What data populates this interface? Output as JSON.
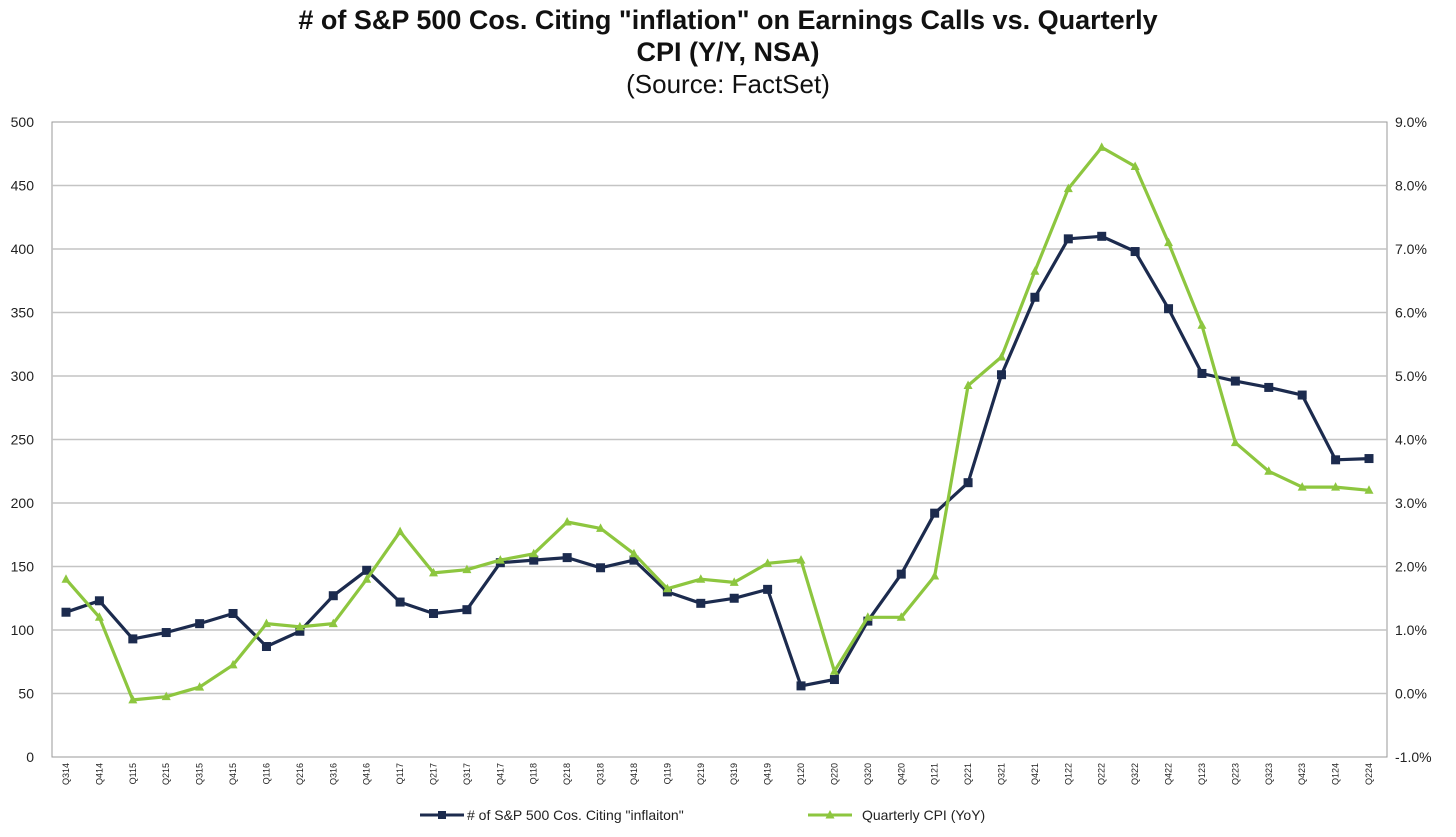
{
  "chart_data": {
    "type": "line",
    "title_line1": "# of S&P 500 Cos. Citing \"inflation\" on Earnings Calls vs. Quarterly",
    "title_line2": "CPI (Y/Y, NSA)",
    "subtitle": "(Source: FactSet)",
    "x": [
      "Q314",
      "Q414",
      "Q115",
      "Q215",
      "Q315",
      "Q415",
      "Q116",
      "Q216",
      "Q316",
      "Q416",
      "Q117",
      "Q217",
      "Q317",
      "Q417",
      "Q118",
      "Q218",
      "Q318",
      "Q418",
      "Q119",
      "Q219",
      "Q319",
      "Q419",
      "Q120",
      "Q220",
      "Q320",
      "Q420",
      "Q121",
      "Q221",
      "Q321",
      "Q421",
      "Q122",
      "Q222",
      "Q322",
      "Q422",
      "Q123",
      "Q223",
      "Q323",
      "Q423",
      "Q124",
      "Q224"
    ],
    "y_left": {
      "ylim": [
        0,
        500
      ],
      "ticks": [
        "0",
        "50",
        "100",
        "150",
        "200",
        "250",
        "300",
        "350",
        "400",
        "450",
        "500"
      ]
    },
    "y_right": {
      "ylim": [
        -1.0,
        9.0
      ],
      "ticks": [
        "-1.0%",
        "0.0%",
        "1.0%",
        "2.0%",
        "3.0%",
        "4.0%",
        "5.0%",
        "6.0%",
        "7.0%",
        "8.0%",
        "9.0%"
      ]
    },
    "grid": true,
    "legend_position": "bottom",
    "series": [
      {
        "name": "# of S&P 500 Cos. Citing \"inflaiton\"",
        "axis": "left",
        "color": "#1c2b4e",
        "marker": "square",
        "values": [
          114,
          123,
          93,
          98,
          105,
          113,
          87,
          99,
          127,
          147,
          122,
          113,
          116,
          153,
          155,
          157,
          149,
          155,
          130,
          121,
          125,
          132,
          56,
          61,
          107,
          144,
          192,
          216,
          301,
          362,
          408,
          410,
          398,
          353,
          302,
          296,
          291,
          285,
          234,
          235
        ]
      },
      {
        "name": "Quarterly CPI (YoY)",
        "axis": "right",
        "color": "#8dc63f",
        "marker": "triangle",
        "values": [
          1.8,
          1.2,
          -0.1,
          -0.05,
          0.1,
          0.45,
          1.1,
          1.05,
          1.1,
          1.8,
          2.55,
          1.9,
          1.95,
          2.1,
          2.2,
          2.7,
          2.6,
          2.2,
          1.65,
          1.8,
          1.75,
          2.05,
          2.1,
          0.35,
          1.2,
          1.2,
          1.85,
          4.85,
          5.3,
          6.65,
          7.95,
          8.6,
          8.3,
          7.1,
          5.8,
          3.95,
          3.5,
          3.25,
          3.25,
          3.2
        ]
      }
    ]
  }
}
